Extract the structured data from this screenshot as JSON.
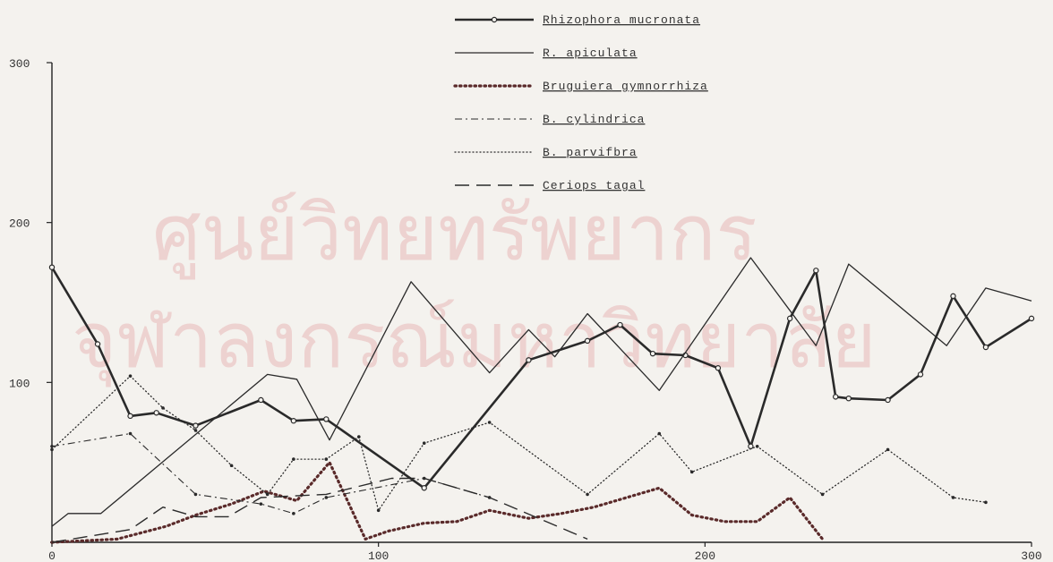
{
  "chart_data": {
    "type": "line",
    "title": "",
    "xlabel": "",
    "ylabel": "",
    "xlim": [
      0,
      300
    ],
    "ylim": [
      0,
      300
    ],
    "x_ticks": [
      "0",
      "100",
      "200",
      "300"
    ],
    "y_ticks": [
      "100",
      "200",
      "300"
    ],
    "grid": false,
    "legend_position": "top-center",
    "watermark_text": [
      "ศูนย์วิทยทรัพยากร",
      "จุฬาลงกรณ์มหาวิทยาลัย"
    ],
    "series": [
      {
        "name": "Rhizophora mucronata",
        "style": "solid-circles",
        "color": "#2a2a2a",
        "x": [
          0,
          14,
          24,
          32,
          44,
          64,
          74,
          84,
          114,
          146,
          164,
          174,
          184,
          194,
          204,
          214,
          226,
          234,
          240,
          244,
          256,
          266,
          276,
          286,
          300
        ],
        "y": [
          172,
          124,
          79,
          81,
          73,
          89,
          76,
          77,
          34,
          114,
          126,
          136,
          118,
          117,
          109,
          60,
          140,
          170,
          91,
          90,
          89,
          105,
          154,
          122,
          140
        ]
      },
      {
        "name": "R. apiculata",
        "style": "solid",
        "color": "#2a2a2a",
        "x": [
          0,
          5,
          15,
          66,
          75,
          85,
          110,
          134,
          146,
          154,
          164,
          186,
          214,
          234,
          244,
          274,
          286,
          300
        ],
        "y": [
          10,
          18,
          18,
          105,
          102,
          64,
          163,
          106,
          133,
          116,
          143,
          95,
          178,
          123,
          174,
          123,
          159,
          151
        ]
      },
      {
        "name": "Bruguiera gymnorrhiza",
        "style": "heavy-dotted",
        "color": "#5a2a2a",
        "x": [
          0,
          20,
          35,
          44,
          55,
          65,
          75,
          85,
          96,
          103,
          114,
          124,
          134,
          146,
          156,
          166,
          186,
          196,
          206,
          216,
          226,
          236
        ],
        "y": [
          0,
          2,
          10,
          17,
          24,
          32,
          26,
          50,
          2,
          7,
          12,
          13,
          20,
          15,
          18,
          22,
          34,
          17,
          13,
          13,
          28,
          2
        ]
      },
      {
        "name": "B. cylindrica",
        "style": "dash-dot",
        "color": "#2a2a2a",
        "x": [
          0,
          24,
          44,
          64,
          74,
          84,
          114,
          134
        ],
        "y": [
          60,
          68,
          30,
          24,
          18,
          28,
          40,
          28
        ]
      },
      {
        "name": "B. parvifbra",
        "style": "dotted",
        "color": "#2a2a2a",
        "x": [
          0,
          24,
          34,
          44,
          55,
          66,
          74,
          84,
          94,
          100,
          114,
          134,
          164,
          186,
          196,
          216,
          236,
          256,
          276,
          286
        ],
        "y": [
          58,
          104,
          84,
          70,
          48,
          30,
          52,
          52,
          66,
          20,
          62,
          75,
          30,
          68,
          44,
          60,
          30,
          58,
          28,
          25
        ]
      },
      {
        "name": "Ceriops tagal",
        "style": "dashed",
        "color": "#2a2a2a",
        "x": [
          0,
          24,
          34,
          44,
          54,
          64,
          84,
          104,
          114,
          134,
          164
        ],
        "y": [
          0,
          8,
          22,
          16,
          16,
          28,
          30,
          40,
          40,
          28,
          2
        ]
      }
    ]
  }
}
